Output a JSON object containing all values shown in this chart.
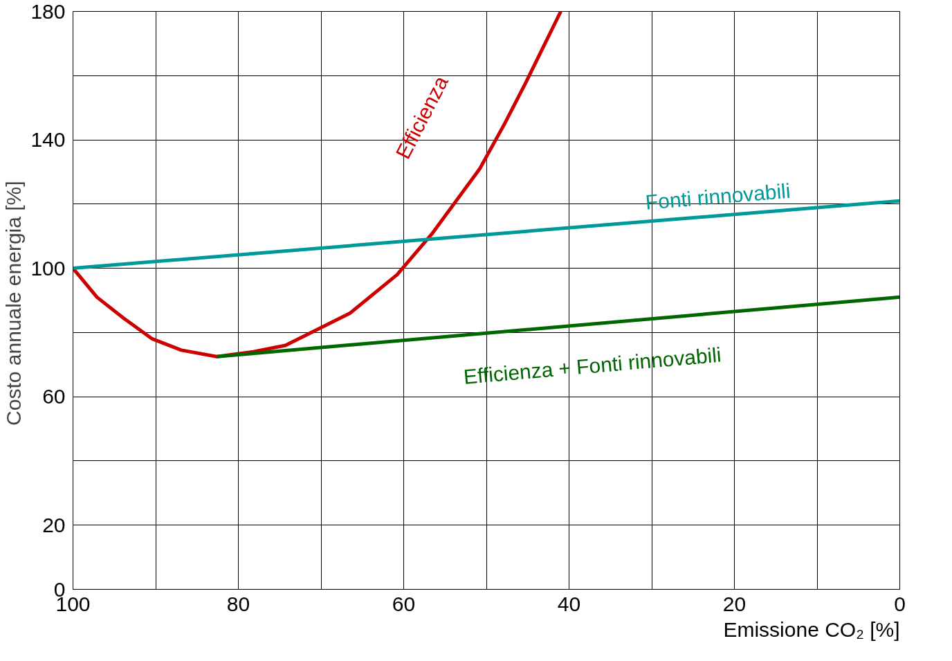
{
  "chart_data": {
    "type": "line",
    "xlabel": "Emissione CO₂ [%]",
    "ylabel": "Costo annuale energia  [%]",
    "xlim": [
      100,
      0
    ],
    "ylim": [
      0,
      180
    ],
    "xticks": [
      100,
      80,
      60,
      40,
      20,
      0,
      {
        "value": 90,
        "label": null
      },
      {
        "value": 70,
        "label": null
      },
      {
        "value": 50,
        "label": null
      },
      {
        "value": 30,
        "label": null
      },
      {
        "value": 10,
        "label": null
      }
    ],
    "yticks": [
      0,
      20,
      60,
      100,
      140,
      180,
      {
        "value": 40,
        "label": null
      },
      {
        "value": 80,
        "label": null
      },
      {
        "value": 120,
        "label": null
      },
      {
        "value": 160,
        "label": null
      }
    ],
    "grid": true,
    "series": [
      {
        "name": "Efficienza",
        "color": "#cc0000",
        "x": [
          100,
          97.1,
          93.9,
          90.4,
          86.9,
          82.6,
          78.2,
          74.3,
          70.4,
          66.5,
          60.8,
          56.5,
          50.8,
          47.8,
          45.2,
          41.0
        ],
        "values": [
          100,
          91,
          84.5,
          78,
          74.5,
          72.5,
          74,
          76,
          81,
          86,
          98,
          111,
          131,
          145,
          158,
          180
        ]
      },
      {
        "name": "Fonti rinnovabili",
        "color": "#009999",
        "x": [
          100,
          0
        ],
        "values": [
          100,
          121
        ]
      },
      {
        "name": "Efficienza + Fonti rinnovabili",
        "color": "#006600",
        "x": [
          82.6,
          0
        ],
        "values": [
          72.5,
          91
        ]
      }
    ]
  }
}
